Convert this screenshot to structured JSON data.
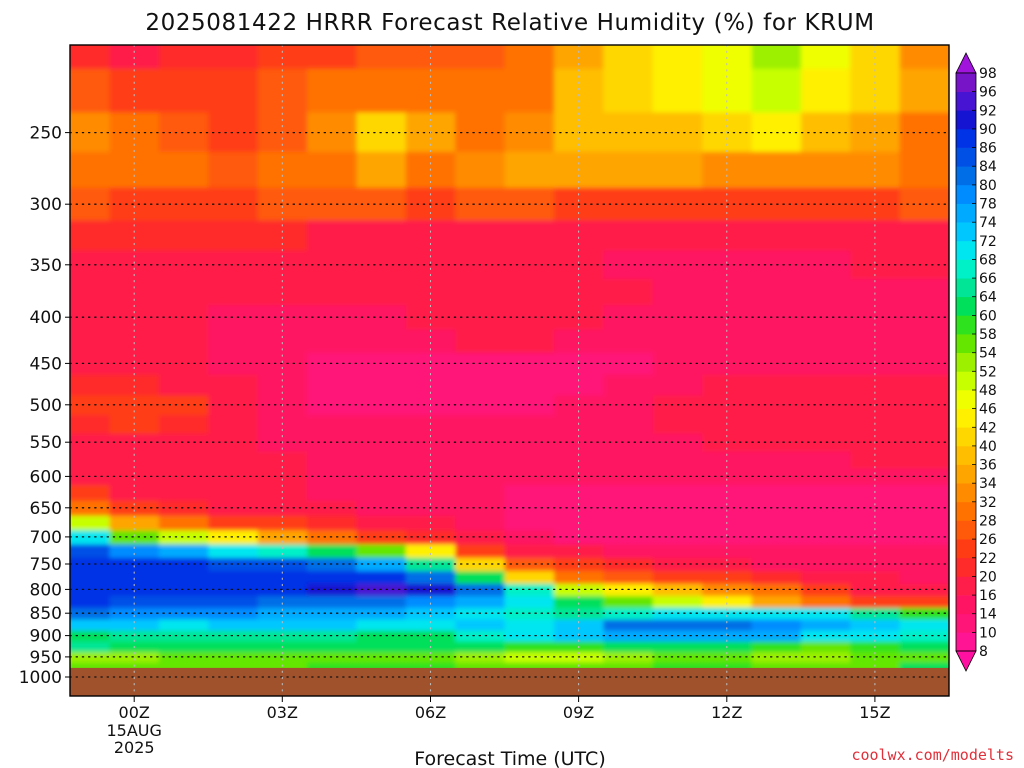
{
  "chart_data": {
    "type": "heatmap",
    "title": "2025081422 HRRR Forecast Relative Humidity (%) for KRUM",
    "xlabel": "Forecast Time (UTC)",
    "ylabel": "",
    "x_ticks": [
      "00Z",
      "03Z",
      "06Z",
      "09Z",
      "12Z",
      "15Z"
    ],
    "x_tick_sub": [
      "15AUG",
      "2025"
    ],
    "x_hours": [
      -2,
      -1,
      0,
      1,
      2,
      3,
      4,
      5,
      6,
      7,
      8,
      9,
      10,
      11,
      12,
      13,
      14,
      15,
      16
    ],
    "y_levels": [
      1000,
      975,
      950,
      925,
      900,
      875,
      850,
      825,
      800,
      775,
      750,
      725,
      700,
      675,
      650,
      625,
      600,
      575,
      550,
      525,
      500,
      475,
      450,
      425,
      400,
      375,
      350,
      325,
      300,
      275,
      250,
      225,
      200
    ],
    "y_ticks": [
      250,
      300,
      350,
      400,
      450,
      500,
      550,
      600,
      650,
      700,
      750,
      800,
      850,
      900,
      950,
      1000
    ],
    "grid": true,
    "ground_color": "#a0522d",
    "surface_pressure": 975,
    "colorbar": {
      "labels": [
        8,
        10,
        14,
        16,
        20,
        22,
        26,
        28,
        32,
        34,
        36,
        40,
        42,
        46,
        48,
        52,
        54,
        58,
        60,
        64,
        66,
        68,
        72,
        74,
        78,
        80,
        84,
        86,
        90,
        92,
        96,
        98
      ],
      "colors": [
        "#ff10a0",
        "#ff1493",
        "#ff1478",
        "#ff1464",
        "#ff1e4a",
        "#ff2a2a",
        "#ff3c14",
        "#ff5a0a",
        "#ff7200",
        "#ff8c00",
        "#ffa500",
        "#ffbe00",
        "#ffd700",
        "#fff000",
        "#f0ff00",
        "#c8ff00",
        "#9cf000",
        "#64e600",
        "#2ee21e",
        "#00e05a",
        "#00e696",
        "#00f0c8",
        "#00e6f0",
        "#00c8ff",
        "#00aaff",
        "#008cff",
        "#006ee6",
        "#0050e6",
        "#0032e6",
        "#1414d2",
        "#4614d2",
        "#7814c8",
        "#a014dc"
      ]
    },
    "rh_rows": [
      [
        98,
        98,
        98,
        98,
        98,
        98,
        98,
        98,
        98,
        98,
        98,
        98,
        98,
        98,
        98,
        98,
        98,
        98,
        98
      ],
      [
        55,
        56,
        56,
        57,
        57,
        57,
        58,
        58,
        58,
        56,
        55,
        56,
        57,
        58,
        58,
        57,
        56,
        57,
        60
      ],
      [
        50,
        52,
        53,
        54,
        55,
        55,
        56,
        56,
        55,
        52,
        50,
        50,
        53,
        56,
        55,
        53,
        52,
        54,
        56
      ],
      [
        62,
        64,
        63,
        62,
        62,
        63,
        63,
        62,
        62,
        62,
        58,
        58,
        60,
        62,
        60,
        58,
        56,
        58,
        60
      ],
      [
        60,
        62,
        64,
        64,
        64,
        64,
        65,
        63,
        62,
        66,
        70,
        72,
        74,
        76,
        76,
        74,
        70,
        68,
        66
      ],
      [
        70,
        72,
        72,
        71,
        72,
        72,
        72,
        70,
        70,
        72,
        70,
        72,
        80,
        82,
        80,
        78,
        76,
        72,
        68
      ],
      [
        80,
        80,
        79,
        78,
        78,
        77,
        76,
        74,
        72,
        70,
        66,
        64,
        66,
        68,
        70,
        70,
        68,
        64,
        58
      ],
      [
        86,
        86,
        85,
        84,
        84,
        83,
        82,
        80,
        78,
        74,
        70,
        62,
        56,
        50,
        42,
        34,
        28,
        24,
        22
      ],
      [
        88,
        88,
        87,
        88,
        88,
        88,
        90,
        92,
        90,
        80,
        66,
        50,
        42,
        36,
        32,
        28,
        22,
        18,
        16
      ],
      [
        90,
        88,
        88,
        88,
        86,
        86,
        88,
        86,
        80,
        60,
        40,
        30,
        26,
        24,
        22,
        20,
        18,
        16,
        14
      ],
      [
        92,
        88,
        86,
        86,
        85,
        84,
        82,
        76,
        64,
        40,
        26,
        22,
        20,
        18,
        16,
        14,
        14,
        14,
        14
      ],
      [
        90,
        84,
        78,
        74,
        68,
        66,
        62,
        56,
        42,
        24,
        18,
        16,
        14,
        14,
        14,
        14,
        14,
        14,
        14
      ],
      [
        86,
        70,
        56,
        48,
        42,
        34,
        30,
        24,
        20,
        16,
        14,
        12,
        12,
        12,
        12,
        12,
        12,
        12,
        12
      ],
      [
        76,
        50,
        34,
        28,
        24,
        22,
        20,
        18,
        16,
        14,
        12,
        12,
        12,
        12,
        12,
        12,
        12,
        12,
        12
      ],
      [
        58,
        30,
        22,
        20,
        18,
        16,
        16,
        14,
        14,
        14,
        12,
        12,
        12,
        12,
        12,
        12,
        12,
        12,
        12
      ],
      [
        40,
        22,
        16,
        16,
        16,
        16,
        14,
        14,
        14,
        14,
        12,
        12,
        12,
        12,
        12,
        12,
        12,
        12,
        12
      ],
      [
        26,
        18,
        16,
        16,
        16,
        16,
        14,
        14,
        14,
        14,
        14,
        14,
        14,
        14,
        14,
        14,
        14,
        14,
        14
      ],
      [
        22,
        18,
        16,
        16,
        16,
        16,
        14,
        14,
        14,
        14,
        14,
        14,
        14,
        14,
        14,
        14,
        14,
        16,
        16
      ],
      [
        18,
        18,
        18,
        18,
        16,
        14,
        14,
        14,
        14,
        14,
        14,
        14,
        14,
        14,
        16,
        16,
        18,
        18,
        18
      ],
      [
        18,
        20,
        22,
        20,
        16,
        14,
        14,
        14,
        14,
        14,
        14,
        14,
        14,
        16,
        16,
        18,
        18,
        18,
        18
      ],
      [
        18,
        22,
        24,
        22,
        18,
        14,
        12,
        12,
        12,
        12,
        12,
        14,
        14,
        16,
        16,
        16,
        18,
        18,
        18
      ],
      [
        18,
        20,
        20,
        18,
        16,
        14,
        12,
        12,
        12,
        12,
        12,
        12,
        14,
        14,
        16,
        16,
        16,
        16,
        16
      ],
      [
        16,
        16,
        16,
        16,
        14,
        14,
        12,
        12,
        12,
        12,
        12,
        12,
        12,
        14,
        14,
        14,
        14,
        14,
        14
      ],
      [
        16,
        16,
        16,
        16,
        14,
        14,
        14,
        14,
        14,
        16,
        16,
        14,
        14,
        14,
        14,
        14,
        14,
        14,
        14
      ],
      [
        16,
        16,
        16,
        16,
        14,
        14,
        14,
        14,
        16,
        18,
        18,
        16,
        14,
        14,
        14,
        14,
        14,
        14,
        14
      ],
      [
        18,
        18,
        18,
        16,
        16,
        16,
        16,
        16,
        16,
        18,
        18,
        16,
        16,
        14,
        14,
        14,
        14,
        14,
        14
      ],
      [
        18,
        18,
        18,
        18,
        16,
        16,
        16,
        16,
        16,
        16,
        16,
        16,
        14,
        14,
        14,
        14,
        14,
        16,
        16
      ],
      [
        22,
        20,
        20,
        20,
        20,
        20,
        18,
        18,
        18,
        18,
        18,
        16,
        16,
        16,
        16,
        16,
        16,
        16,
        18
      ],
      [
        30,
        26,
        24,
        24,
        24,
        26,
        26,
        26,
        24,
        26,
        26,
        24,
        24,
        24,
        22,
        22,
        22,
        24,
        26
      ],
      [
        32,
        30,
        28,
        28,
        26,
        28,
        30,
        34,
        30,
        32,
        34,
        34,
        34,
        34,
        32,
        32,
        32,
        32,
        30
      ],
      [
        34,
        32,
        28,
        26,
        24,
        26,
        32,
        40,
        34,
        30,
        32,
        36,
        36,
        38,
        40,
        42,
        38,
        34,
        30
      ],
      [
        28,
        26,
        24,
        24,
        24,
        26,
        28,
        30,
        30,
        28,
        30,
        36,
        40,
        42,
        46,
        50,
        44,
        40,
        34
      ],
      [
        22,
        20,
        18,
        20,
        20,
        22,
        24,
        26,
        26,
        26,
        28,
        34,
        40,
        42,
        46,
        52,
        46,
        40,
        32
      ]
    ]
  },
  "credit": "coolwx.com/modelts"
}
